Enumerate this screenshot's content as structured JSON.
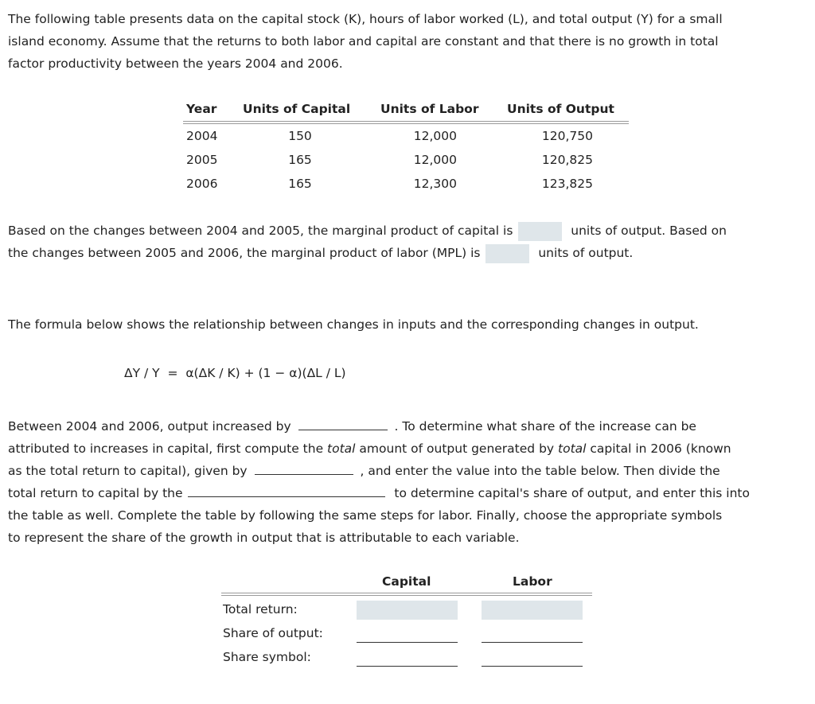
{
  "intro": [
    "The following table presents data on the capital stock (K), hours of labor worked (L), and total output (Y) for a small",
    "island economy. Assume that the returns to both labor and capital are constant and that there is no growth in total",
    "factor productivity between the years 2004 and 2006."
  ],
  "data_table": {
    "headers": [
      "Year",
      "Units of Capital",
      "Units of Labor",
      "Units of Output"
    ],
    "rows": [
      [
        "2004",
        "150",
        "12,000",
        "120,750"
      ],
      [
        "2005",
        "165",
        "12,000",
        "120,825"
      ],
      [
        "2006",
        "165",
        "12,300",
        "123,825"
      ]
    ]
  },
  "mp": {
    "l1a": "Based on the changes between 2004 and 2005, the marginal product of capital is",
    "l1b": "units of output. Based on",
    "l2a": "the changes between 2005 and 2006, the marginal product of labor (MPL) is",
    "l2b": "units of output.",
    "mpk_value": "",
    "mpl_value": ""
  },
  "formula_intro": "The formula below shows the relationship between changes in inputs and the corresponding changes in output.",
  "formula": {
    "lhs": "ΔY / Y",
    "eq": "=",
    "rhs": "α(ΔK / K) + (1 − α)(ΔL / L)"
  },
  "para": {
    "l1a": "Between 2004 and 2006, output increased by",
    "l1b": ". To determine what share of the increase can be",
    "l2a": "attributed to increases in capital, first compute the ",
    "l2i": "total",
    "l2b": " amount of output generated by ",
    "l2i2": "total",
    "l2c": " capital in 2006 (known",
    "l3a": "as the total return to capital), given by",
    "l3b": ", and enter the value into the table below. Then divide the",
    "l4a": "total return to capital by the",
    "l4b": "to determine capital's share of output, and enter this into",
    "l5": "the table as well. Complete the table by following the same steps for labor. Finally, choose the appropriate symbols",
    "l6": "to represent the share of the growth in output that is attributable to each variable."
  },
  "answer_table": {
    "headers": [
      "Capital",
      "Labor"
    ],
    "rows": [
      "Total return:",
      "Share of output:",
      "Share symbol:"
    ]
  }
}
